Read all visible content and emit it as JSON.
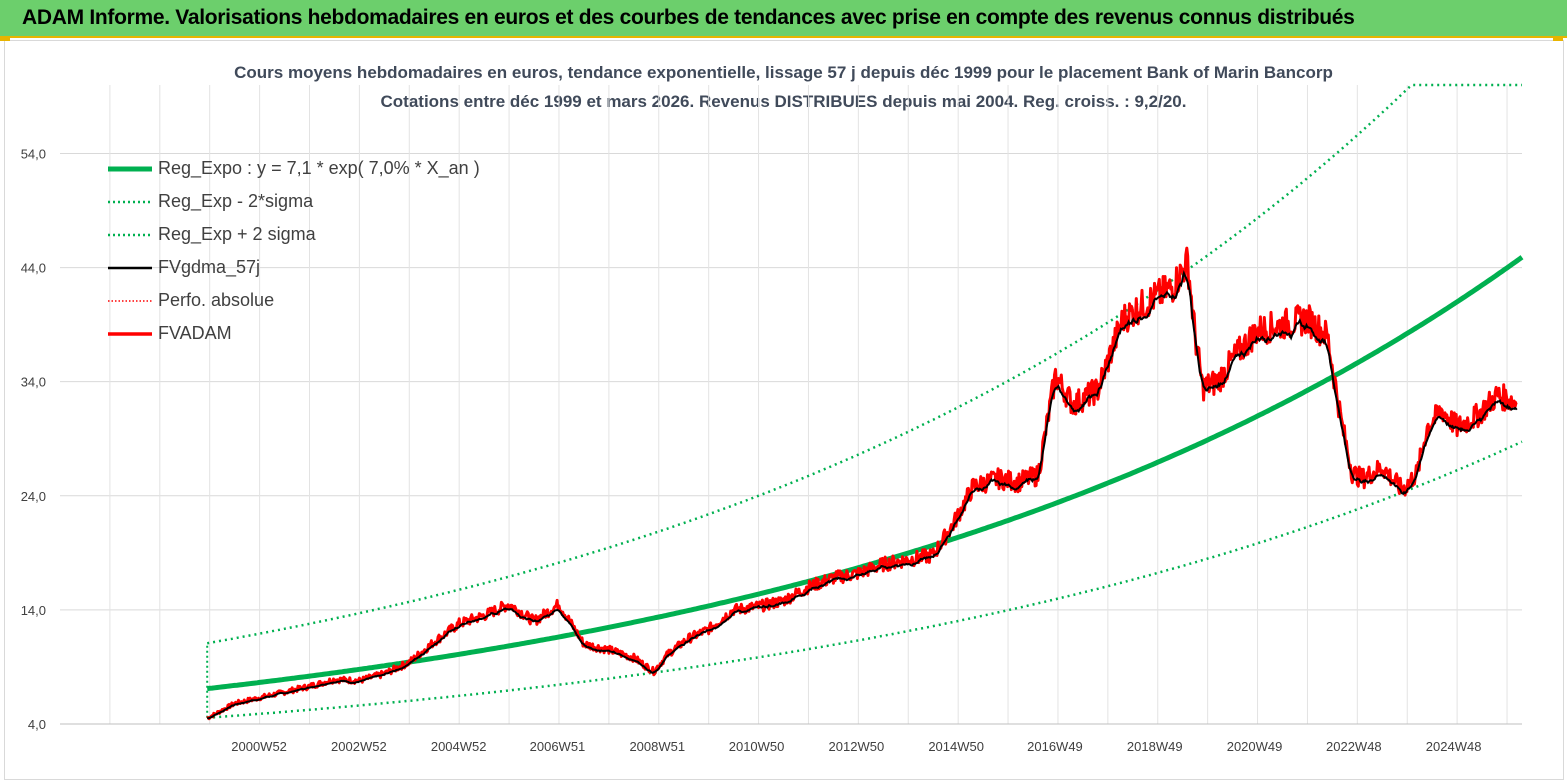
{
  "header": {
    "title": "ADAM Informe. Valorisations hebdomadaires en euros et des courbes de tendances avec prise en compte des revenus connus distribués"
  },
  "chart_data": {
    "type": "line",
    "title_line1": "Cours moyens hebdomadaires en euros, tendance exponentielle, lissage 57 j depuis déc 1999 pour le placement Bank of Marin Bancorp",
    "title_line2": "Cotations entre déc 1999 et mars 2026. Revenus DISTRIBUES depuis mai 2004. Reg. croiss. : 9,2/20.",
    "ylim": [
      4,
      60
    ],
    "yticks": [
      "4,0",
      "14,0",
      "24,0",
      "34,0",
      "44,0",
      "54,0"
    ],
    "ytick_values": [
      4,
      14,
      24,
      34,
      44,
      54
    ],
    "xticks": [
      "2000W52",
      "2002W52",
      "2004W52",
      "2006W51",
      "2008W51",
      "2010W50",
      "2012W50",
      "2014W50",
      "2016W49",
      "2018W49",
      "2020W49",
      "2022W48",
      "2024W48"
    ],
    "xtick_years": [
      2000.99,
      2002.99,
      2004.99,
      2006.97,
      2008.97,
      2010.96,
      2012.96,
      2014.96,
      2016.94,
      2018.94,
      2020.94,
      2022.93,
      2024.93
    ],
    "x_range": [
      1997.0,
      2026.3
    ],
    "data_start": 1999.95,
    "grid": true,
    "legend_position": "top-left",
    "regression": {
      "a": 7.1,
      "rate": 0.07,
      "sigma_factor_low": 0.64,
      "sigma_factor_high": 1.56
    },
    "series": [
      {
        "name": "Reg_Expo : y = 7,1 * exp( 7,0% *  X_an )",
        "color": "#00b050",
        "style": "solid-thick"
      },
      {
        "name": "Reg_Exp - 2*sigma",
        "color": "#00b050",
        "style": "dotted"
      },
      {
        "name": "Reg_Exp + 2 sigma",
        "color": "#00b050",
        "style": "dotted"
      },
      {
        "name": "FVgdma_57j",
        "color": "#000000",
        "style": "solid"
      },
      {
        "name": "Perfo. absolue",
        "color": "#ff0000",
        "style": "dotted-thin"
      },
      {
        "name": "FVADAM",
        "color": "#ff0000",
        "style": "solid"
      }
    ],
    "price_points": {
      "x": [
        1999.95,
        2000.5,
        2001.0,
        2001.5,
        2002.0,
        2002.5,
        2003.0,
        2003.5,
        2004.0,
        2004.5,
        2005.0,
        2005.5,
        2006.0,
        2006.5,
        2007.0,
        2007.5,
        2008.0,
        2008.5,
        2008.9,
        2009.2,
        2009.6,
        2010.0,
        2010.5,
        2011.0,
        2011.5,
        2012.0,
        2012.5,
        2013.0,
        2013.5,
        2014.0,
        2014.5,
        2014.9,
        2015.3,
        2015.8,
        2016.2,
        2016.6,
        2016.95,
        2017.3,
        2017.8,
        2018.3,
        2018.8,
        2019.3,
        2019.6,
        2019.75,
        2019.9,
        2020.2,
        2020.6,
        2021.0,
        2021.5,
        2022.0,
        2022.4,
        2022.7,
        2022.9,
        2023.1,
        2023.5,
        2023.9,
        2024.2,
        2024.4,
        2024.7,
        2025.0,
        2025.4,
        2025.8,
        2026.2
      ],
      "y": [
        4.5,
        5.8,
        6.3,
        6.8,
        7.3,
        7.9,
        7.8,
        8.4,
        9.4,
        11.2,
        12.8,
        13.5,
        14.5,
        13.0,
        14.5,
        11.0,
        10.5,
        9.8,
        8.6,
        10.2,
        11.5,
        12.3,
        14.0,
        14.3,
        14.8,
        16.0,
        16.8,
        17.2,
        18.0,
        18.4,
        18.8,
        21.5,
        24.8,
        25.5,
        25.2,
        25.8,
        34.5,
        32.0,
        33.3,
        39.5,
        41.0,
        42.3,
        44.5,
        38.0,
        33.5,
        34.0,
        36.5,
        38.5,
        39.0,
        39.5,
        38.0,
        30.0,
        26.0,
        25.5,
        26.5,
        24.5,
        26.0,
        30.0,
        31.5,
        30.0,
        31.0,
        32.8,
        32.2
      ]
    }
  }
}
